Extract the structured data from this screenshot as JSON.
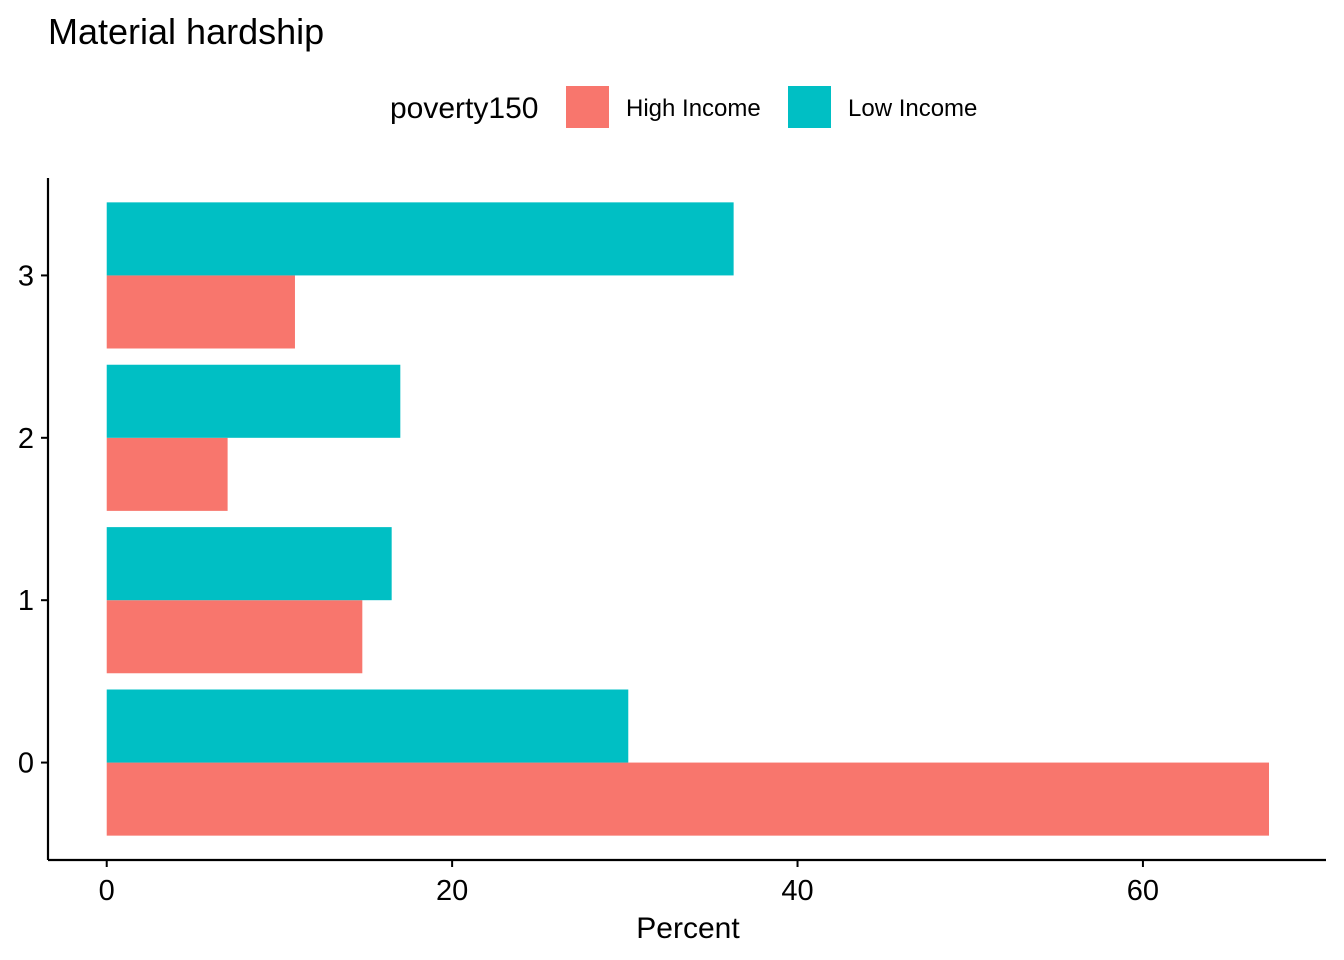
{
  "chart_data": {
    "type": "bar",
    "orientation": "horizontal",
    "title": "Material hardship",
    "xlabel": "Percent",
    "ylabel": "",
    "legend": {
      "title": "poverty150",
      "position": "top"
    },
    "categories": [
      "0",
      "1",
      "2",
      "3"
    ],
    "series": [
      {
        "name": "High Income",
        "color": "#F8766D",
        "values": [
          67.3,
          14.8,
          7.0,
          10.9
        ]
      },
      {
        "name": "Low Income",
        "color": "#00BFC4",
        "values": [
          30.2,
          16.5,
          17.0,
          36.3
        ]
      }
    ],
    "xlim": [
      -3.4,
      70.6
    ],
    "xticks": [
      0,
      20,
      40,
      60
    ],
    "grid": false
  }
}
